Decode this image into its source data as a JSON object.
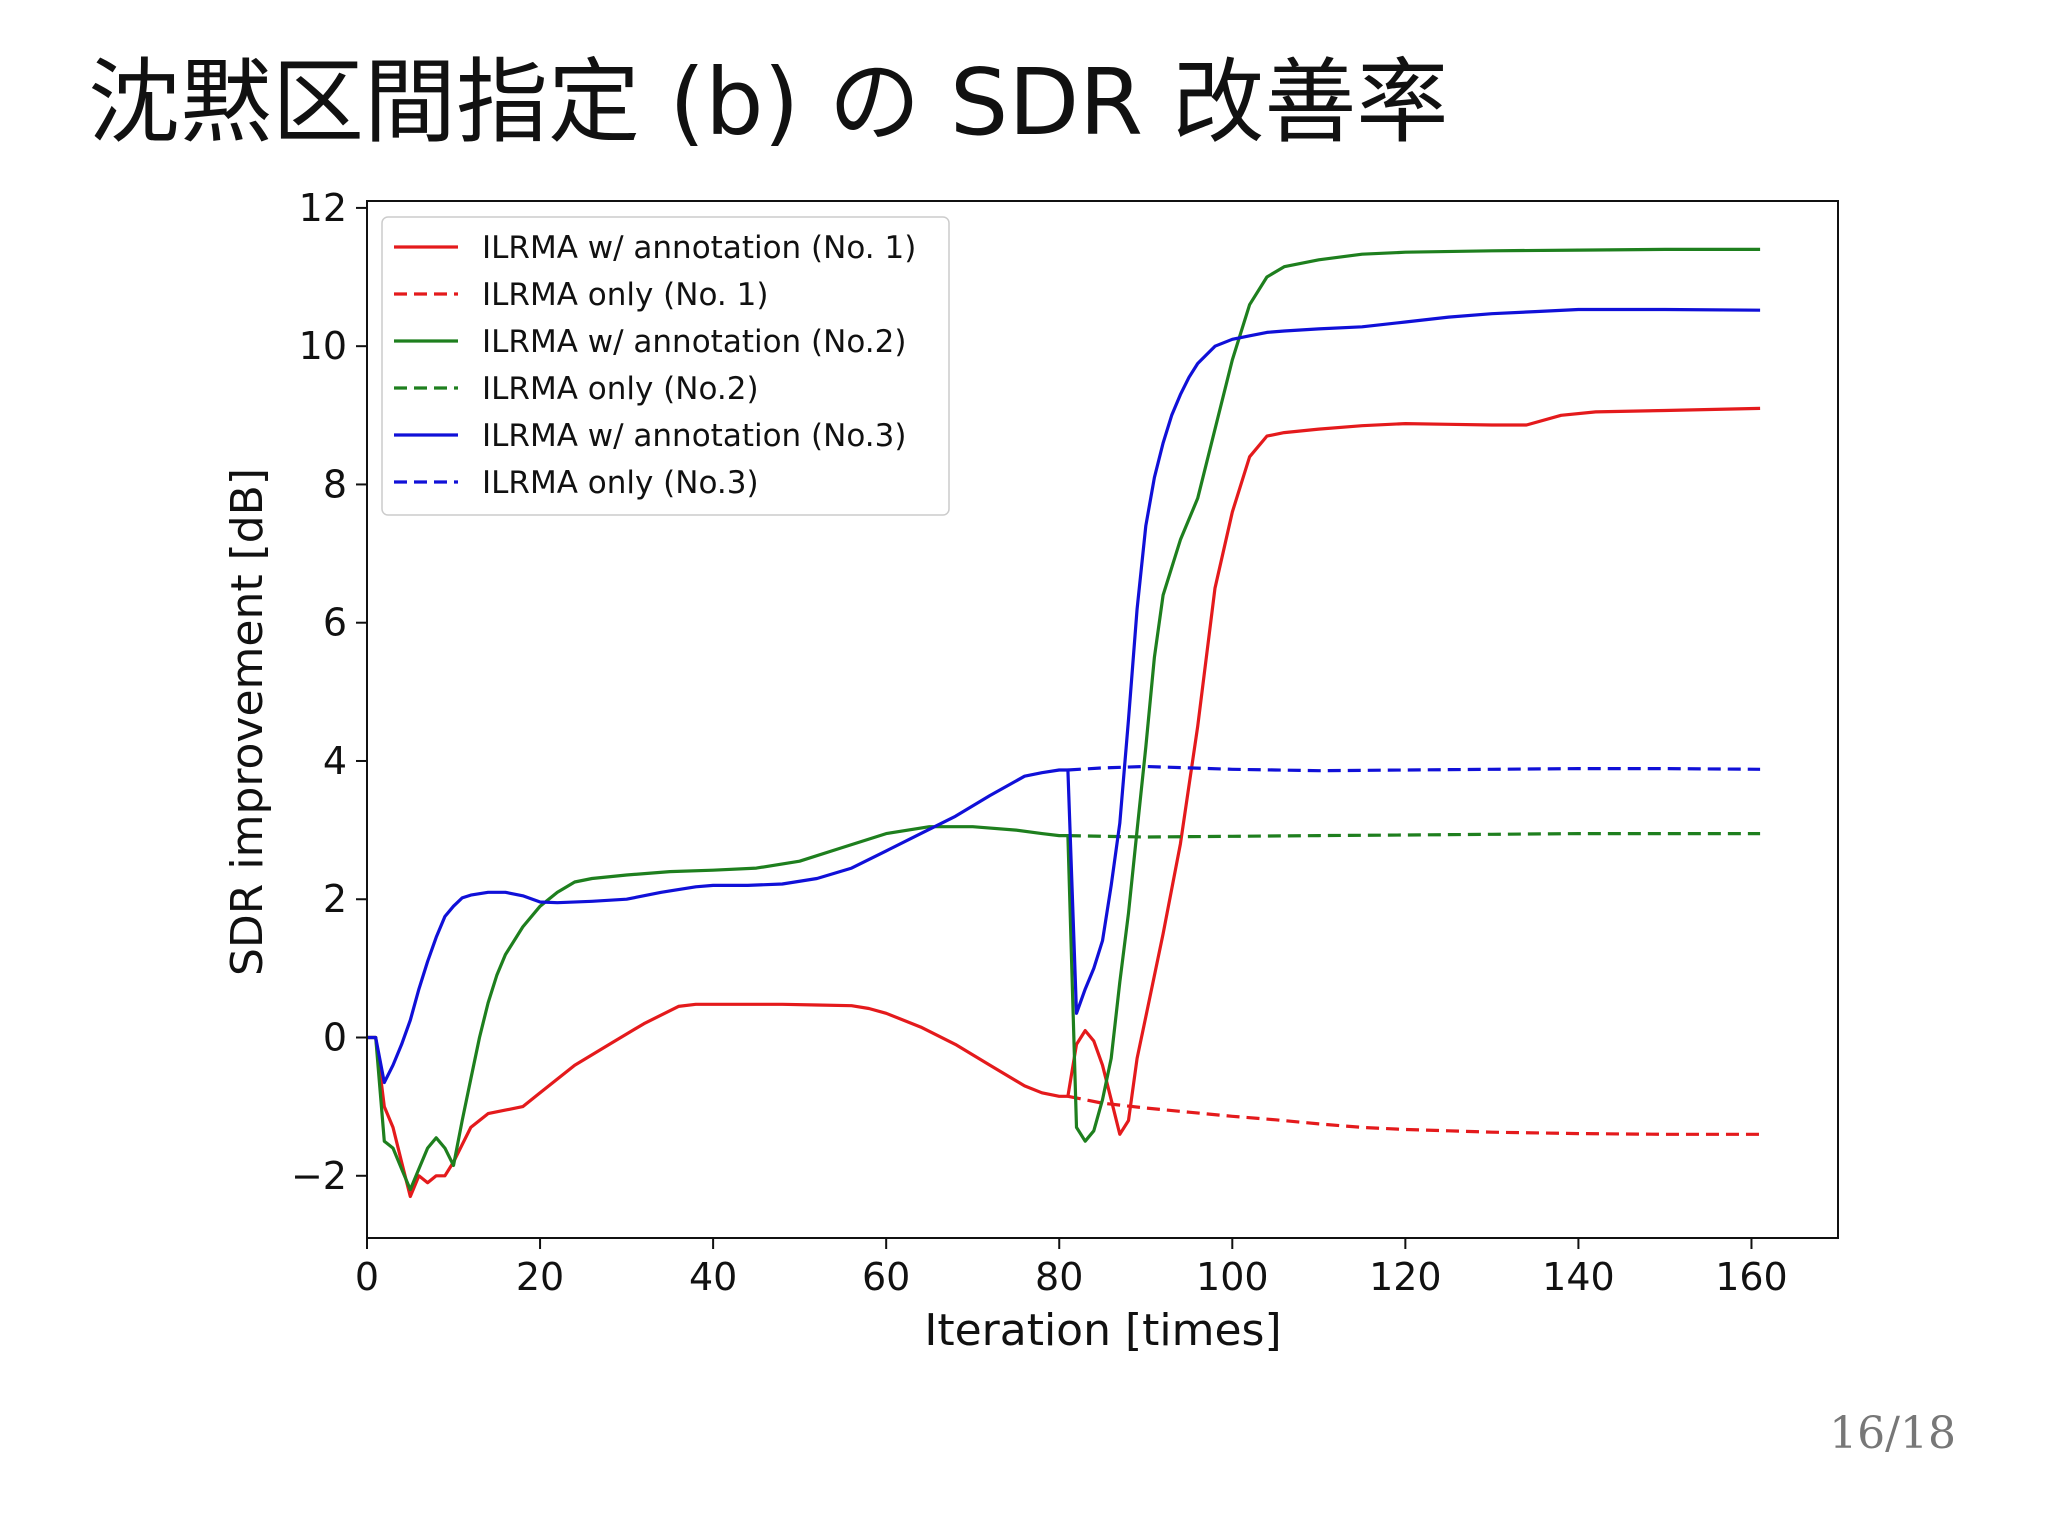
{
  "slide": {
    "title": "沈黙区間指定 (b) の SDR 改善率",
    "page_number": "16/18"
  },
  "chart_data": {
    "type": "line",
    "xlabel": "Iteration [times]",
    "ylabel": "SDR improvement [dB]",
    "xlim": [
      0,
      170
    ],
    "ylim": [
      -2.9,
      12.1
    ],
    "xticks": [
      0,
      20,
      40,
      60,
      80,
      100,
      120,
      140,
      160
    ],
    "yticks": [
      -2,
      0,
      2,
      4,
      6,
      8,
      10,
      12
    ],
    "ytick_labels": [
      "−2",
      "0",
      "2",
      "4",
      "6",
      "8",
      "10",
      "12"
    ],
    "grid": false,
    "legend_position": "upper-left",
    "series": [
      {
        "name": "ILRMA w/ annotation (No. 1)",
        "color": "#e41a1c",
        "dash": "solid",
        "x": [
          0,
          1,
          2,
          3,
          4,
          5,
          6,
          7,
          8,
          9,
          10,
          12,
          14,
          16,
          18,
          20,
          24,
          28,
          32,
          36,
          38,
          40,
          44,
          48,
          52,
          56,
          58,
          60,
          64,
          68,
          72,
          76,
          78,
          80,
          81,
          82,
          83,
          84,
          85,
          86,
          87,
          88,
          89,
          90,
          92,
          94,
          96,
          98,
          100,
          102,
          104,
          106,
          110,
          115,
          120,
          125,
          130,
          134,
          138,
          142,
          150,
          161
        ],
        "y": [
          0,
          0,
          -1.0,
          -1.3,
          -1.8,
          -2.3,
          -2.0,
          -2.1,
          -2.0,
          -2.0,
          -1.8,
          -1.3,
          -1.1,
          -1.05,
          -1.0,
          -0.8,
          -0.4,
          -0.1,
          0.2,
          0.45,
          0.48,
          0.48,
          0.48,
          0.48,
          0.47,
          0.46,
          0.42,
          0.35,
          0.15,
          -0.1,
          -0.4,
          -0.7,
          -0.8,
          -0.85,
          -0.85,
          -0.1,
          0.1,
          -0.05,
          -0.4,
          -0.9,
          -1.4,
          -1.2,
          -0.3,
          0.3,
          1.5,
          2.8,
          4.5,
          6.5,
          7.6,
          8.4,
          8.7,
          8.75,
          8.8,
          8.85,
          8.88,
          8.87,
          8.86,
          8.86,
          9.0,
          9.05,
          9.07,
          9.1
        ]
      },
      {
        "name": "ILRMA only (No. 1)",
        "color": "#e41a1c",
        "dash": "dashed",
        "x": [
          81,
          85,
          90,
          95,
          100,
          105,
          110,
          115,
          120,
          125,
          130,
          140,
          150,
          161
        ],
        "y": [
          -0.85,
          -0.95,
          -1.02,
          -1.08,
          -1.14,
          -1.19,
          -1.25,
          -1.3,
          -1.33,
          -1.35,
          -1.37,
          -1.39,
          -1.4,
          -1.4
        ]
      },
      {
        "name": "ILRMA w/ annotation (No.2)",
        "color": "#1e7f1e",
        "dash": "solid",
        "x": [
          0,
          1,
          2,
          3,
          4,
          5,
          6,
          7,
          8,
          9,
          10,
          11,
          12,
          13,
          14,
          15,
          16,
          18,
          20,
          22,
          24,
          26,
          30,
          35,
          40,
          45,
          50,
          55,
          60,
          65,
          70,
          75,
          78,
          80,
          81,
          82,
          83,
          84,
          85,
          86,
          87,
          88,
          89,
          90,
          91,
          92,
          94,
          96,
          98,
          100,
          102,
          104,
          106,
          110,
          115,
          120,
          130,
          140,
          150,
          161
        ],
        "y": [
          0,
          0,
          -1.5,
          -1.6,
          -1.9,
          -2.2,
          -1.9,
          -1.6,
          -1.45,
          -1.6,
          -1.85,
          -1.2,
          -0.6,
          0,
          0.5,
          0.9,
          1.2,
          1.6,
          1.9,
          2.1,
          2.25,
          2.3,
          2.35,
          2.4,
          2.42,
          2.45,
          2.55,
          2.75,
          2.95,
          3.05,
          3.05,
          3.0,
          2.95,
          2.92,
          2.92,
          -1.3,
          -1.5,
          -1.35,
          -0.9,
          -0.3,
          0.8,
          1.8,
          3.0,
          4.2,
          5.5,
          6.4,
          7.2,
          7.8,
          8.8,
          9.8,
          10.6,
          11.0,
          11.15,
          11.25,
          11.33,
          11.36,
          11.38,
          11.39,
          11.4,
          11.4
        ]
      },
      {
        "name": "ILRMA only (No.2)",
        "color": "#1e7f1e",
        "dash": "dashed",
        "x": [
          81,
          85,
          90,
          100,
          110,
          120,
          130,
          140,
          150,
          161
        ],
        "y": [
          2.92,
          2.91,
          2.9,
          2.91,
          2.92,
          2.93,
          2.94,
          2.95,
          2.95,
          2.95
        ]
      },
      {
        "name": "ILRMA w/ annotation (No.3)",
        "color": "#1010d8",
        "dash": "solid",
        "x": [
          0,
          1,
          2,
          3,
          4,
          5,
          6,
          7,
          8,
          9,
          10,
          11,
          12,
          14,
          16,
          18,
          20,
          22,
          26,
          30,
          34,
          38,
          40,
          44,
          48,
          52,
          56,
          60,
          64,
          68,
          72,
          76,
          78,
          80,
          81,
          82,
          83,
          84,
          85,
          86,
          87,
          88,
          89,
          90,
          91,
          92,
          93,
          94,
          95,
          96,
          98,
          100,
          102,
          104,
          106,
          110,
          115,
          120,
          125,
          130,
          135,
          140,
          150,
          161
        ],
        "y": [
          0,
          0,
          -0.65,
          -0.4,
          -0.1,
          0.25,
          0.7,
          1.1,
          1.45,
          1.75,
          1.9,
          2.02,
          2.06,
          2.1,
          2.1,
          2.05,
          1.96,
          1.95,
          1.97,
          2.0,
          2.1,
          2.18,
          2.2,
          2.2,
          2.22,
          2.3,
          2.45,
          2.7,
          2.95,
          3.2,
          3.5,
          3.78,
          3.83,
          3.87,
          3.87,
          0.35,
          0.7,
          1.0,
          1.4,
          2.2,
          3.1,
          4.6,
          6.2,
          7.4,
          8.1,
          8.6,
          9.0,
          9.3,
          9.55,
          9.75,
          10.0,
          10.1,
          10.15,
          10.2,
          10.22,
          10.25,
          10.28,
          10.35,
          10.42,
          10.47,
          10.5,
          10.53,
          10.53,
          10.52
        ]
      },
      {
        "name": "ILRMA only (No.3)",
        "color": "#1010d8",
        "dash": "dashed",
        "x": [
          81,
          85,
          90,
          95,
          100,
          105,
          110,
          120,
          130,
          140,
          150,
          161
        ],
        "y": [
          3.87,
          3.9,
          3.92,
          3.9,
          3.88,
          3.87,
          3.86,
          3.87,
          3.88,
          3.89,
          3.89,
          3.88
        ]
      }
    ]
  }
}
